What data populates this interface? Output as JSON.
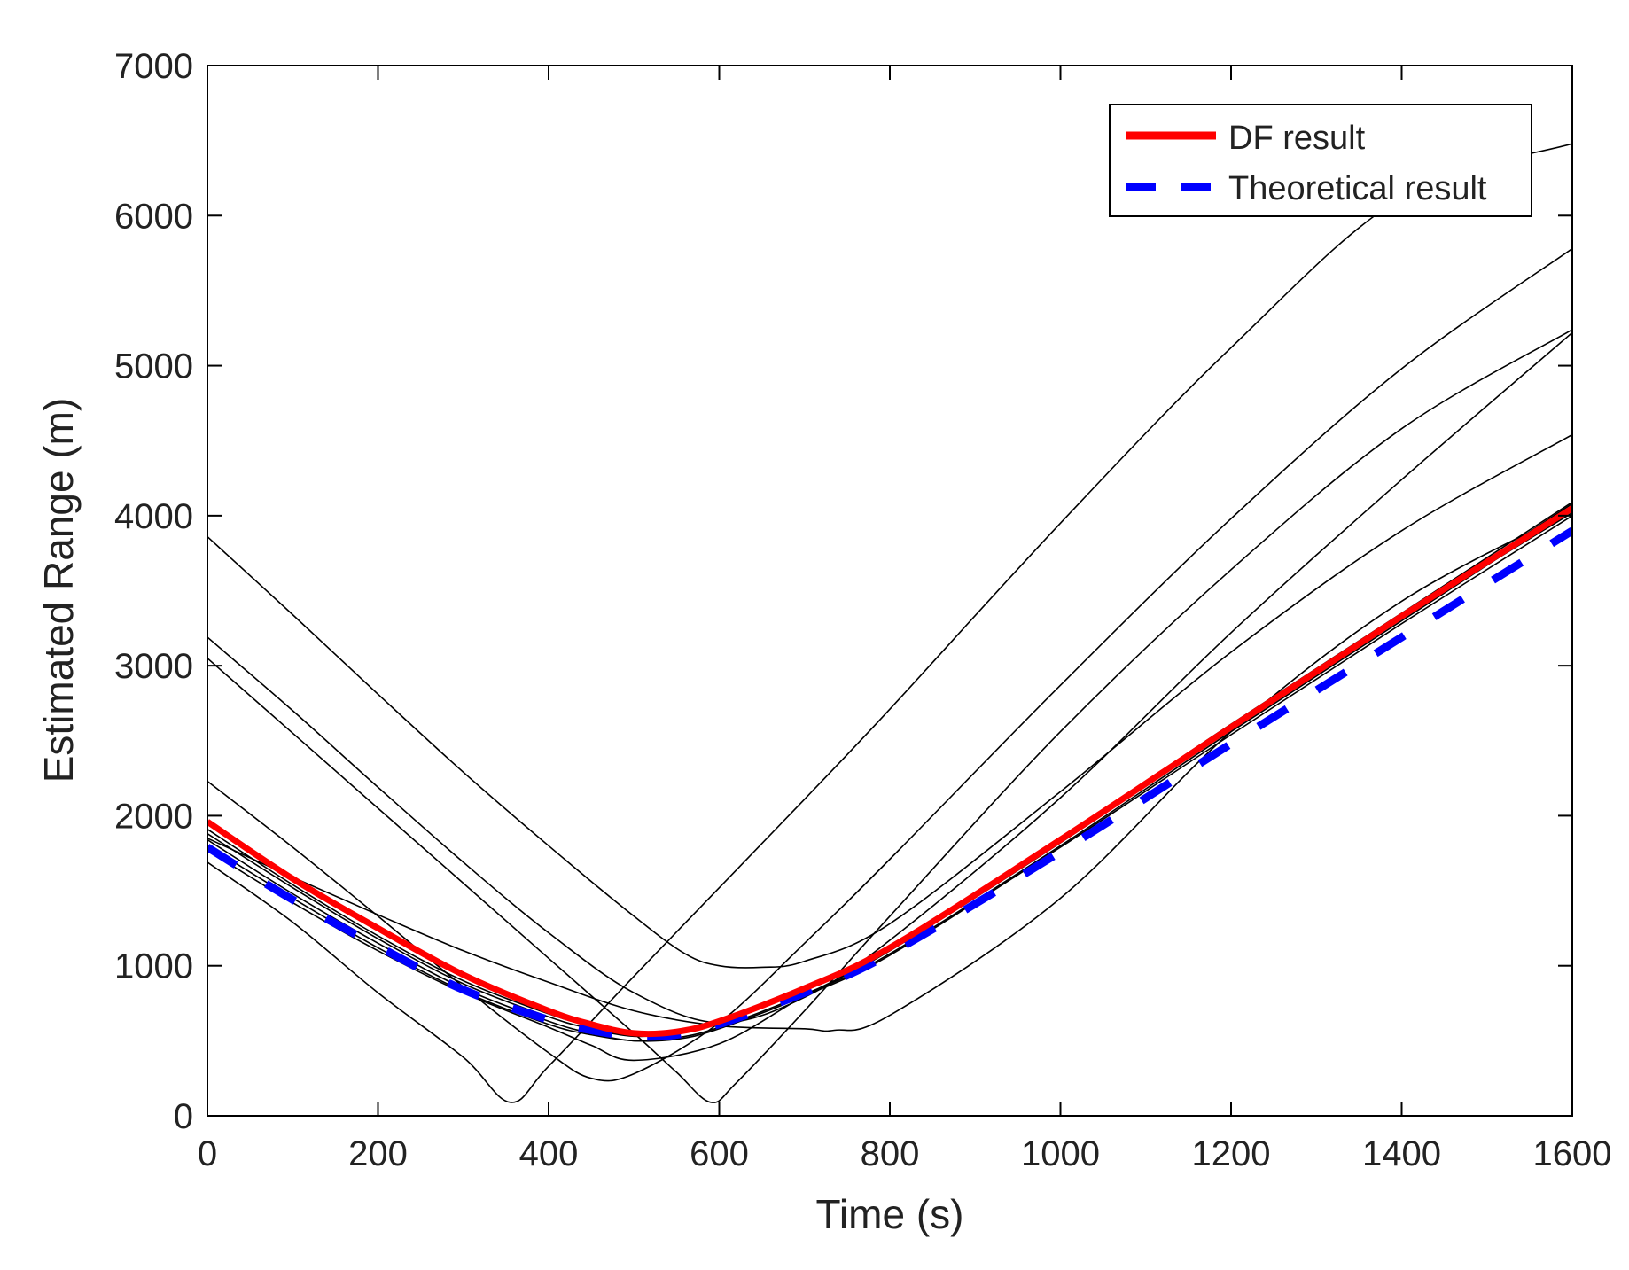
{
  "chart_data": {
    "type": "line",
    "title": "",
    "xlabel": "Time (s)",
    "ylabel": "Estimated Range (m)",
    "xlim": [
      0,
      1600
    ],
    "ylim": [
      0,
      7000
    ],
    "xticks": [
      0,
      200,
      400,
      600,
      800,
      1000,
      1200,
      1400,
      1600
    ],
    "yticks": [
      0,
      1000,
      2000,
      3000,
      4000,
      5000,
      6000,
      7000
    ],
    "grid": false,
    "legend": {
      "placement": "top-right",
      "entries": [
        {
          "label": "DF result",
          "color": "#ff0000",
          "style": "solid"
        },
        {
          "label": "Theoretical result",
          "color": "#0000ff",
          "style": "dashed"
        }
      ]
    },
    "x_samples": [
      0,
      100,
      200,
      300,
      400,
      450,
      500,
      550,
      600,
      700,
      800,
      1000,
      1200,
      1400,
      1600
    ],
    "series": [
      {
        "name": "DF result",
        "color": "#ff0000",
        "style": "solid",
        "values": [
          1960,
          1580,
          1250,
          940,
          700,
          610,
          550,
          560,
          630,
          850,
          1120,
          1840,
          2590,
          3330,
          4050
        ]
      },
      {
        "name": "Theoretical result",
        "color": "#0000ff",
        "style": "dashed",
        "values": [
          1790,
          1440,
          1130,
          840,
          640,
          570,
          530,
          540,
          610,
          820,
          1080,
          1760,
          2480,
          3190,
          3900
        ]
      }
    ],
    "ensemble": [
      {
        "x": [
          0,
          100,
          200,
          300,
          400,
          450,
          500,
          550,
          600,
          700,
          800,
          1000,
          1200,
          1400,
          1600
        ],
        "values": [
          1880,
          1520,
          1180,
          880,
          660,
          580,
          530,
          550,
          620,
          840,
          1110,
          1830,
          2590,
          3330,
          4080
        ]
      },
      {
        "x": [
          0,
          100,
          200,
          300,
          400,
          450,
          500,
          550,
          600,
          700,
          800,
          1000,
          1200,
          1400,
          1600
        ],
        "values": [
          1840,
          1480,
          1150,
          850,
          630,
          550,
          500,
          520,
          590,
          810,
          1080,
          1800,
          2560,
          3300,
          4040
        ]
      },
      {
        "x": [
          0,
          100,
          200,
          300,
          400,
          450,
          500,
          550,
          600,
          700,
          800,
          1000,
          1200,
          1400,
          1600
        ],
        "values": [
          1800,
          1450,
          1120,
          830,
          610,
          540,
          500,
          510,
          580,
          800,
          1070,
          1790,
          2540,
          3280,
          4000
        ]
      },
      {
        "x": [
          0,
          100,
          200,
          300,
          400,
          450,
          500,
          550,
          600,
          700,
          800,
          1000,
          1200,
          1400,
          1600
        ],
        "values": [
          1910,
          1540,
          1200,
          900,
          680,
          600,
          560,
          570,
          640,
          860,
          1130,
          1850,
          2610,
          3350,
          4090
        ]
      },
      {
        "x": [
          0,
          100,
          200,
          300,
          355,
          400,
          500,
          600,
          700,
          800,
          1000,
          1200,
          1400,
          1600
        ],
        "values": [
          1690,
          1290,
          820,
          390,
          90,
          330,
          930,
          1520,
          2110,
          2710,
          3950,
          5120,
          6120,
          6480
        ]
      },
      {
        "x": [
          0,
          100,
          200,
          300,
          400,
          450,
          500,
          600,
          700,
          800,
          1000,
          1200,
          1400,
          1600
        ],
        "values": [
          2230,
          1790,
          1330,
          860,
          420,
          250,
          280,
          620,
          1150,
          1710,
          2870,
          3980,
          4980,
          5780
        ]
      },
      {
        "x": [
          0,
          100,
          200,
          300,
          400,
          500,
          550,
          590,
          620,
          700,
          800,
          1000,
          1200,
          1400,
          1600
        ],
        "values": [
          3050,
          2550,
          2050,
          1550,
          1050,
          550,
          290,
          90,
          220,
          700,
          1330,
          2560,
          3640,
          4580,
          5240
        ]
      },
      {
        "x": [
          0,
          100,
          200,
          300,
          400,
          500,
          600,
          700,
          800,
          1000,
          1200,
          1400,
          1600
        ],
        "values": [
          3190,
          2700,
          2190,
          1690,
          1220,
          820,
          620,
          790,
          1170,
          2120,
          3220,
          4240,
          5220
        ]
      },
      {
        "x": [
          0,
          100,
          200,
          300,
          400,
          500,
          560,
          600,
          650,
          700,
          800,
          1000,
          1200,
          1400,
          1600
        ],
        "values": [
          3860,
          3340,
          2810,
          2290,
          1800,
          1330,
          1080,
          1000,
          990,
          1030,
          1280,
          2160,
          3090,
          3900,
          4540
        ]
      },
      {
        "x": [
          0,
          100,
          200,
          300,
          400,
          500,
          600,
          700,
          735,
          800,
          1000,
          1200,
          1400,
          1600
        ],
        "values": [
          1850,
          1590,
          1340,
          1100,
          890,
          700,
          600,
          580,
          570,
          670,
          1450,
          2560,
          3430,
          4030
        ]
      },
      {
        "x": [
          0,
          100,
          200,
          300,
          400,
          450,
          500,
          600,
          700,
          800,
          1000,
          1200,
          1400,
          1600
        ],
        "values": [
          1770,
          1420,
          1100,
          820,
          590,
          470,
          370,
          480,
          800,
          1100,
          1820,
          2580,
          3320,
          4020
        ]
      }
    ]
  }
}
